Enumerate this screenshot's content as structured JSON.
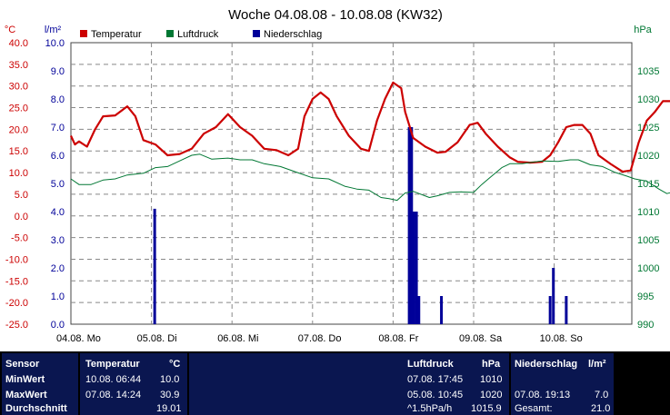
{
  "chart_data": {
    "type": "line",
    "title": "Woche 04.08.08 - 10.08.08 (KW32)",
    "units": {
      "temperature": "°C",
      "precipitation": "l/m²",
      "pressure": "hPa"
    },
    "legend": {
      "placement": "top-left",
      "items": [
        {
          "name": "Temperatur",
          "color": "#cc0000"
        },
        {
          "name": "Luftdruck",
          "color": "#007733"
        },
        {
          "name": "Niederschlag",
          "color": "#000099"
        }
      ]
    },
    "grid": true,
    "x_ticks": [
      "04.08. Mo",
      "05.08. Di",
      "06.08. Mi",
      "07.08. Do",
      "08.08. Fr",
      "09.08. Sa",
      "10.08. So"
    ],
    "temp_axis": {
      "range": [
        -25,
        40
      ],
      "ticks": [
        "40.0",
        "35.0",
        "30.0",
        "25.0",
        "20.0",
        "15.0",
        "10.0",
        "5.0",
        "0.0",
        "-5.0",
        "-10.0",
        "-15.0",
        "-20.0",
        "-25.0"
      ]
    },
    "precip_axis": {
      "range": [
        0,
        10
      ],
      "ticks": [
        "10.0",
        "9.0",
        "8.0",
        "7.0",
        "6.0",
        "5.0",
        "4.0",
        "3.0",
        "2.0",
        "1.0",
        "0.0"
      ]
    },
    "pressure_axis": {
      "range": [
        990,
        1040
      ],
      "ticks": [
        "1035",
        "1030",
        "1025",
        "1020",
        "1015",
        "1010",
        "1005",
        "1000",
        "995",
        "990"
      ]
    },
    "series": [
      {
        "name": "Temperatur",
        "axis": "temp",
        "color": "#cc0000",
        "points": [
          [
            0,
            18.5
          ],
          [
            0.05,
            16.5
          ],
          [
            0.1,
            17.2
          ],
          [
            0.2,
            16
          ],
          [
            0.3,
            20
          ],
          [
            0.4,
            23
          ],
          [
            0.55,
            23.2
          ],
          [
            0.7,
            25.3
          ],
          [
            0.8,
            23
          ],
          [
            0.9,
            17.5
          ],
          [
            1.05,
            16.5
          ],
          [
            1.2,
            14
          ],
          [
            1.35,
            14.3
          ],
          [
            1.5,
            15.5
          ],
          [
            1.65,
            19
          ],
          [
            1.8,
            20.5
          ],
          [
            1.95,
            23.5
          ],
          [
            2.1,
            20.5
          ],
          [
            2.25,
            18.5
          ],
          [
            2.4,
            15.5
          ],
          [
            2.55,
            15.2
          ],
          [
            2.7,
            14
          ],
          [
            2.82,
            15.5
          ],
          [
            2.9,
            23
          ],
          [
            3.0,
            27
          ],
          [
            3.1,
            28.5
          ],
          [
            3.2,
            27
          ],
          [
            3.3,
            23
          ],
          [
            3.45,
            18.5
          ],
          [
            3.6,
            15.5
          ],
          [
            3.7,
            15
          ],
          [
            3.8,
            22
          ],
          [
            3.9,
            27
          ],
          [
            4.0,
            30.8
          ],
          [
            4.1,
            29.5
          ],
          [
            4.15,
            24
          ],
          [
            4.25,
            18
          ],
          [
            4.4,
            16
          ],
          [
            4.55,
            14.6
          ],
          [
            4.65,
            14.8
          ],
          [
            4.8,
            17
          ],
          [
            4.95,
            21
          ],
          [
            5.05,
            21.5
          ],
          [
            5.15,
            19
          ],
          [
            5.3,
            16
          ],
          [
            5.45,
            13.5
          ],
          [
            5.55,
            12.5
          ],
          [
            5.7,
            12.3
          ],
          [
            5.85,
            12.5
          ],
          [
            5.95,
            14
          ],
          [
            6.05,
            17
          ],
          [
            6.15,
            20.5
          ],
          [
            6.25,
            21
          ],
          [
            6.35,
            21
          ],
          [
            6.45,
            19
          ],
          [
            6.55,
            14
          ],
          [
            6.7,
            12
          ],
          [
            6.85,
            10.2
          ],
          [
            6.95,
            10.5
          ],
          [
            7.05,
            17
          ],
          [
            7.15,
            22
          ],
          [
            7.25,
            24
          ],
          [
            7.35,
            26.5
          ],
          [
            7.45,
            26.5
          ],
          [
            7.55,
            25
          ],
          [
            7.62,
            20
          ],
          [
            7.7,
            16.3
          ]
        ]
      },
      {
        "name": "Luftdruck",
        "axis": "pressure",
        "color": "#007733",
        "points": [
          [
            0,
            1015.8
          ],
          [
            0.1,
            1014.8
          ],
          [
            0.25,
            1014.8
          ],
          [
            0.4,
            1015.6
          ],
          [
            0.55,
            1015.8
          ],
          [
            0.7,
            1016.5
          ],
          [
            0.9,
            1016.8
          ],
          [
            1.05,
            1017.8
          ],
          [
            1.2,
            1018
          ],
          [
            1.35,
            1019
          ],
          [
            1.5,
            1020
          ],
          [
            1.6,
            1020.2
          ],
          [
            1.75,
            1019.3
          ],
          [
            1.95,
            1019.5
          ],
          [
            2.1,
            1019.2
          ],
          [
            2.25,
            1019.2
          ],
          [
            2.4,
            1018.5
          ],
          [
            2.6,
            1018
          ],
          [
            2.8,
            1017
          ],
          [
            3.0,
            1016
          ],
          [
            3.2,
            1015.8
          ],
          [
            3.4,
            1014.5
          ],
          [
            3.55,
            1014
          ],
          [
            3.7,
            1013.8
          ],
          [
            3.85,
            1012.5
          ],
          [
            3.95,
            1012.3
          ],
          [
            4.05,
            1012
          ],
          [
            4.15,
            1013.3
          ],
          [
            4.25,
            1013.6
          ],
          [
            4.45,
            1012.5
          ],
          [
            4.55,
            1012.8
          ],
          [
            4.7,
            1013.4
          ],
          [
            4.85,
            1013.5
          ],
          [
            5.0,
            1013.4
          ],
          [
            5.1,
            1014.8
          ],
          [
            5.2,
            1016
          ],
          [
            5.35,
            1017.8
          ],
          [
            5.45,
            1018.5
          ],
          [
            5.6,
            1018.5
          ],
          [
            5.75,
            1018.8
          ],
          [
            5.85,
            1019
          ],
          [
            6.05,
            1018.9
          ],
          [
            6.2,
            1019.2
          ],
          [
            6.3,
            1019.2
          ],
          [
            6.45,
            1018.3
          ],
          [
            6.6,
            1018
          ],
          [
            6.75,
            1017
          ],
          [
            6.9,
            1016.3
          ],
          [
            7.0,
            1015.8
          ],
          [
            7.15,
            1015.4
          ],
          [
            7.3,
            1014
          ],
          [
            7.4,
            1013.2
          ],
          [
            7.55,
            1013.8
          ],
          [
            7.7,
            1013.8
          ]
        ]
      },
      {
        "name": "Niederschlag",
        "axis": "precip",
        "color": "#000099",
        "bars": [
          [
            1.04,
            4.1
          ],
          [
            4.2,
            7.0
          ],
          [
            4.23,
            7.0
          ],
          [
            4.26,
            4.0
          ],
          [
            4.29,
            4.0
          ],
          [
            4.32,
            1.0
          ],
          [
            4.6,
            1.0
          ],
          [
            5.95,
            1.0
          ],
          [
            5.99,
            2.0
          ],
          [
            6.15,
            1.0
          ]
        ]
      }
    ]
  },
  "table": {
    "header": {
      "sensor": "Sensor",
      "temperatur": "Temperatur",
      "temp_unit": "°C",
      "luftdruck": "Luftdruck",
      "press_unit": "hPa",
      "niederschlag": "Niederschlag",
      "precip_unit": "l/m²"
    },
    "min": {
      "label": "MinWert",
      "temp_time": "10.08.  06:44",
      "temp_val": "10.0",
      "press_time": "07.08.  17:45",
      "press_val": "1010"
    },
    "max": {
      "label": "MaxWert",
      "temp_time": "07.08.  14:24",
      "temp_val": "30.9",
      "press_time": "05.08.  10:45",
      "press_val": "1020",
      "precip_time": "07.08.  19:13",
      "precip_val": "7.0"
    },
    "avg": {
      "label": "Durchschnitt",
      "temp_val": "19.01",
      "press_trend": "^1.5hPa/h",
      "press_val": "1015.9",
      "precip_label": "Gesamt:",
      "precip_val": "21.0"
    }
  }
}
